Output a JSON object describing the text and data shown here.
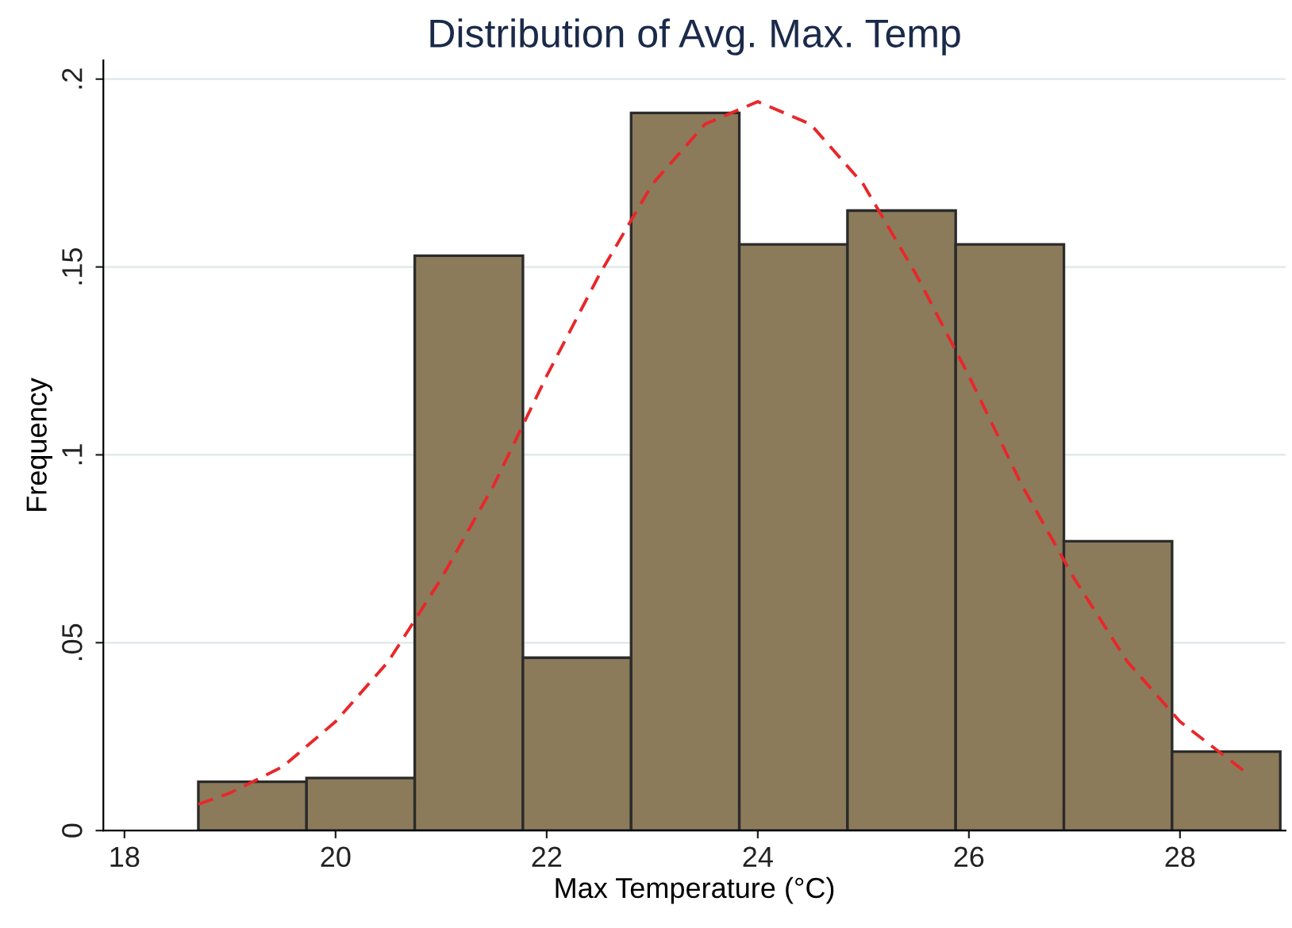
{
  "chart_data": {
    "type": "histogram",
    "title": "Distribution of Avg. Max. Temp",
    "xlabel": "Max Temperature (°C)",
    "ylabel": "Frequency",
    "series": [
      {
        "color": "#8b7b5b",
        "bins": [
          18.7,
          19.725,
          20.75,
          21.775,
          22.8,
          23.825,
          24.85,
          25.875,
          26.9,
          27.925,
          28.95
        ],
        "values": [
          0.013,
          0.014,
          0.153,
          0.046,
          0.191,
          0.156,
          0.165,
          0.156,
          0.077,
          0.021
        ]
      },
      {
        "type": "line",
        "color": "#e8272a",
        "line_style": "dashed",
        "x": [
          18.7,
          19,
          19.5,
          20,
          20.5,
          21,
          21.5,
          22,
          22.5,
          23,
          23.5,
          24,
          24.5,
          25,
          25.5,
          26,
          26.5,
          27,
          27.5,
          28,
          28.6
        ],
        "values": [
          0.007,
          0.01,
          0.017,
          0.029,
          0.045,
          0.067,
          0.092,
          0.121,
          0.148,
          0.172,
          0.188,
          0.194,
          0.188,
          0.172,
          0.148,
          0.121,
          0.092,
          0.067,
          0.045,
          0.029,
          0.016
        ]
      }
    ],
    "xlim": [
      17.8,
      29
    ],
    "ylim": [
      0,
      0.205
    ],
    "xticks": [
      18,
      20,
      22,
      24,
      26,
      28
    ],
    "yticks": [
      0,
      {
        "value": 0.05,
        "label": ".05"
      },
      {
        "value": 0.1,
        "label": ".1"
      },
      {
        "value": 0.15,
        "label": ".15"
      },
      {
        "value": 0.2,
        "label": ".2"
      }
    ],
    "grid": "y"
  }
}
